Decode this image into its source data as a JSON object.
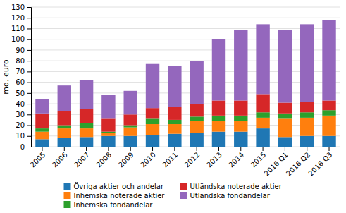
{
  "chart_data": {
    "type": "bar",
    "stacked": true,
    "grid": true,
    "legend": "bottom",
    "ylabel": "md. euro",
    "categories": [
      "2005",
      "2006",
      "2007",
      "2008",
      "2009",
      "2010",
      "2011",
      "2012",
      "2013",
      "2014",
      "2015",
      "2016 Q1",
      "2016 Q2",
      "2016 Q3"
    ],
    "series": [
      {
        "name": "Övriga aktier och andelar",
        "values": [
          7,
          8,
          9,
          10,
          10,
          11,
          12,
          13,
          14,
          14,
          17,
          9,
          10,
          10
        ]
      },
      {
        "name": "Inhemska noterade aktier",
        "values": [
          7,
          9,
          8,
          3,
          8,
          10,
          9,
          11,
          10,
          10,
          10,
          17,
          17,
          19
        ]
      },
      {
        "name": "Inhemska fondandelar",
        "values": [
          3,
          3,
          5,
          1,
          2,
          5,
          4,
          4,
          5,
          5,
          5,
          5,
          5,
          5
        ]
      },
      {
        "name": "Utländska noterade aktier",
        "values": [
          14,
          13,
          13,
          12,
          10,
          10,
          12,
          12,
          14,
          14,
          17,
          10,
          10,
          9
        ]
      },
      {
        "name": "Utländska fondandelar",
        "values": [
          13,
          24,
          27,
          22,
          22,
          41,
          38,
          40,
          57,
          66,
          65,
          68,
          72,
          75
        ]
      }
    ],
    "ylim": [
      0,
      130
    ],
    "yticks": [
      0,
      10,
      20,
      30,
      40,
      50,
      60,
      70,
      80,
      90,
      100,
      110,
      120,
      130
    ]
  }
}
